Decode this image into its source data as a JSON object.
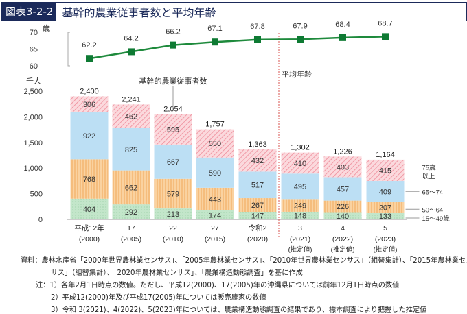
{
  "figure_number": "図表3-2-2",
  "title": "基幹的農業従事者数と平均年齢",
  "chart_data": {
    "type": "bar",
    "categories": [
      {
        "label": "平成12年",
        "year": "(2000)",
        "note": ""
      },
      {
        "label": "17",
        "year": "(2005)",
        "note": ""
      },
      {
        "label": "22",
        "year": "(2010)",
        "note": ""
      },
      {
        "label": "27",
        "year": "(2015)",
        "note": ""
      },
      {
        "label": "令和2",
        "year": "(2020)",
        "note": ""
      },
      {
        "label": "3",
        "year": "(2021)",
        "note": "(推定値)"
      },
      {
        "label": "4",
        "year": "(2022)",
        "note": "(推定値)"
      },
      {
        "label": "5",
        "year": "(2023)",
        "note": "(推定値)"
      }
    ],
    "series": [
      {
        "name": "15～49歳",
        "values": [
          404,
          292,
          213,
          174,
          147,
          148,
          140,
          133
        ],
        "color": "#b5dfbd"
      },
      {
        "name": "50～64",
        "values": [
          768,
          662,
          579,
          443,
          267,
          249,
          226,
          207
        ],
        "color": "#f9c88c"
      },
      {
        "name": "65～74",
        "values": [
          922,
          825,
          667,
          590,
          517,
          495,
          457,
          409
        ],
        "color": "#bcdff4"
      },
      {
        "name": "75歳以上",
        "values": [
          306,
          462,
          595,
          550,
          432,
          410,
          403,
          415
        ],
        "color": "#f6b9c1"
      }
    ],
    "totals": [
      2400,
      2241,
      2054,
      1757,
      1363,
      1302,
      1226,
      1164
    ],
    "totals_labels": [
      "2,400",
      "2,241",
      "2,054",
      "1,757",
      "1,363",
      "1,302",
      "1,226",
      "1,164"
    ],
    "bar_series_label": "基幹的農業従事者数",
    "ylabel": "千人",
    "ylim": [
      0,
      2500
    ],
    "yticks": [
      "0",
      "500",
      "1,000",
      "1,500",
      "2,000",
      "2,500"
    ],
    "yticks_values": [
      0,
      500,
      1000,
      1500,
      2000,
      2500
    ],
    "line": {
      "type": "line",
      "name": "平均年齢",
      "unit": "歳",
      "values": [
        62.2,
        64.2,
        66.2,
        67.1,
        67.8,
        67.9,
        68.4,
        68.7
      ],
      "ylim": [
        60,
        70
      ],
      "yticks": [
        60,
        65,
        70
      ],
      "color": "#1e8a3c"
    },
    "divider_color": "#d9534f"
  },
  "source": "資料：農林水産省「2000年世界農林業センサス」、「2005年農林業センサス」、「2010年世界農林業センサス」（組替集計）、「2015年農林業セン",
  "source_cont": "サス」（組替集計）、「2020年農林業センサス」、「農業構造動態調査」を基に作成",
  "note1": "注：1）各年2月1日時点の数値。ただし、平成12(2000)、17(2005)年の沖縄県については前年12月1日時点の数値",
  "note2": "2）平成12(2000)年及び平成17(2005)年については販売農家の数値",
  "note3": "3）令和 3(2021)、4(2022)、5(2023)年については、農業構造動態調査の結果であり、標本調査により把握した推定値"
}
